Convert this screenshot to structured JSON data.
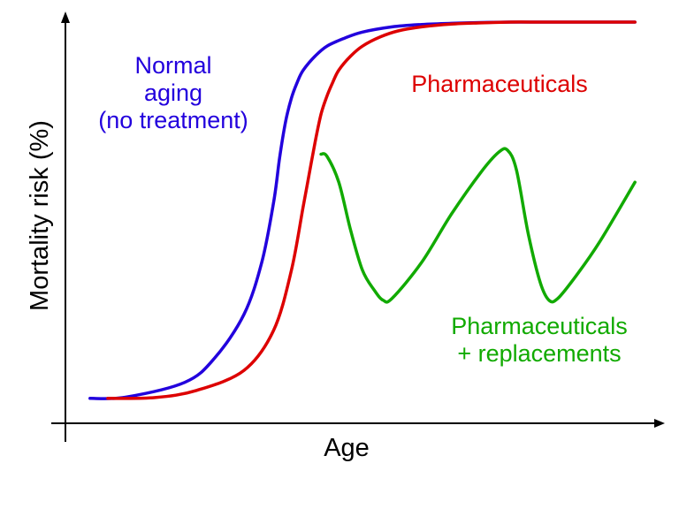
{
  "chart_data": {
    "type": "line",
    "xlabel": "Age",
    "ylabel": "Mortality risk (%)",
    "xlim": [
      0,
      100
    ],
    "ylim": [
      0,
      100
    ],
    "grid": false,
    "series": [
      {
        "name": "Normal aging (no treatment)",
        "label_lines": [
          "Normal",
          "aging",
          "(no treatment)"
        ],
        "color": "#2200dd",
        "x": [
          4,
          10,
          20,
          25,
          30,
          33,
          35,
          36,
          37,
          38,
          39,
          40,
          42,
          44,
          47,
          50,
          55,
          60,
          65,
          70,
          75,
          80,
          85,
          90,
          96
        ],
        "y": [
          6,
          6.3,
          10,
          16,
          27,
          40,
          55,
          66,
          75,
          81,
          85,
          88,
          91.5,
          94,
          96,
          97.5,
          98.8,
          99.4,
          99.7,
          99.9,
          100,
          100,
          100,
          100,
          100
        ]
      },
      {
        "name": "Pharmaceuticals",
        "label_lines": [
          "Pharmaceuticals"
        ],
        "color": "#dd0000",
        "x": [
          7,
          15,
          22,
          30,
          35,
          38,
          40,
          41,
          42,
          43,
          44,
          45,
          46,
          48,
          50,
          53,
          56,
          60,
          65,
          70,
          75,
          80,
          85,
          90,
          96
        ],
        "y": [
          6,
          6.2,
          8,
          13,
          23,
          38,
          54,
          62,
          70,
          77,
          81.5,
          85,
          88,
          91.5,
          94,
          96.3,
          97.8,
          98.8,
          99.5,
          99.8,
          100,
          100,
          100,
          100,
          100
        ]
      },
      {
        "name": "Pharmaceuticals + replacements",
        "label_lines": [
          "Pharmaceuticals",
          "+ replacements"
        ],
        "color": "#11aa00",
        "x": [
          43,
          44,
          46,
          48,
          50,
          52,
          53.5,
          55,
          60,
          65,
          70,
          73,
          74.5,
          76,
          78,
          80,
          81.5,
          83,
          86,
          90,
          96
        ],
        "y": [
          67,
          66.5,
          60,
          48,
          38,
          33,
          30.5,
          31,
          40,
          52,
          62.5,
          67.5,
          68,
          63,
          47,
          35,
          30.5,
          31,
          36.5,
          45,
          60
        ]
      }
    ]
  }
}
